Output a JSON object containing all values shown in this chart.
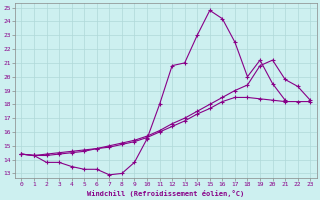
{
  "xlabel": "Windchill (Refroidissement éolien,°C)",
  "bg_color": "#cdf0f0",
  "line_color": "#880088",
  "ylim": [
    13,
    25
  ],
  "xlim": [
    0,
    23
  ],
  "yticks": [
    13,
    14,
    15,
    16,
    17,
    18,
    19,
    20,
    21,
    22,
    23,
    24,
    25
  ],
  "xticks": [
    0,
    1,
    2,
    3,
    4,
    5,
    6,
    7,
    8,
    9,
    10,
    11,
    12,
    13,
    14,
    15,
    16,
    17,
    18,
    19,
    20,
    21,
    22,
    23
  ],
  "line1_x": [
    0,
    1,
    2,
    3,
    4,
    5,
    6,
    7,
    8,
    9,
    10,
    11,
    12,
    13,
    14,
    15,
    16,
    17,
    18,
    19,
    20,
    21
  ],
  "line1_y": [
    14.4,
    14.3,
    13.8,
    13.8,
    13.5,
    13.3,
    13.3,
    12.9,
    13.0,
    13.8,
    15.5,
    18.0,
    20.8,
    21.0,
    23.0,
    24.8,
    24.2,
    22.5,
    20.0,
    21.2,
    19.5,
    18.3
  ],
  "line2_x": [
    0,
    1,
    2,
    3,
    4,
    5,
    6,
    7,
    8,
    9,
    10,
    11,
    12,
    13,
    14,
    15,
    16,
    17,
    18,
    19,
    20,
    21,
    22,
    23
  ],
  "line2_y": [
    14.4,
    14.3,
    14.4,
    14.5,
    14.6,
    14.7,
    14.8,
    14.9,
    15.1,
    15.3,
    15.6,
    16.0,
    16.4,
    16.8,
    17.3,
    17.7,
    18.2,
    18.5,
    18.5,
    18.4,
    18.3,
    18.2,
    18.2,
    18.2
  ],
  "line3_x": [
    0,
    1,
    2,
    3,
    4,
    5,
    6,
    7,
    8,
    9,
    10,
    11,
    12,
    13,
    14,
    15,
    16,
    17,
    18,
    19,
    20,
    21,
    22,
    23
  ],
  "line3_y": [
    14.4,
    14.3,
    14.3,
    14.4,
    14.5,
    14.6,
    14.8,
    15.0,
    15.2,
    15.4,
    15.7,
    16.1,
    16.6,
    17.0,
    17.5,
    18.0,
    18.5,
    19.0,
    19.4,
    20.8,
    21.2,
    19.8,
    19.3,
    18.3
  ]
}
